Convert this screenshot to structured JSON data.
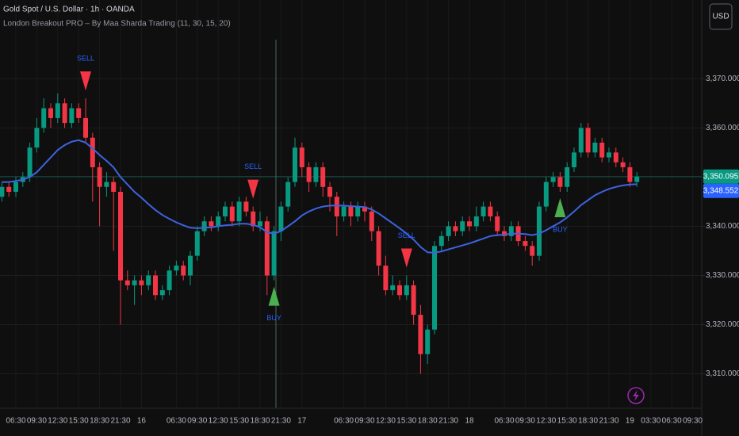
{
  "chart_data": {
    "type": "candlestick",
    "title": "Gold Spot / U.S. Dollar · 1h · OANDA",
    "subtitle": "London Breakout PRO – By Maa Sharda Trading (11, 30, 15, 20)",
    "currency": "USD",
    "grid": true,
    "up_color": "#089981",
    "down_color": "#f23645",
    "ylim": [
      3303,
      3386
    ],
    "yticks": [
      {
        "value": 3310,
        "label": "3,310.000"
      },
      {
        "value": 3320,
        "label": "3,320.000"
      },
      {
        "value": 3330,
        "label": "3,330.000"
      },
      {
        "value": 3340,
        "label": "3,340.000"
      },
      {
        "value": 3350,
        "label": "3,350.000"
      },
      {
        "value": 3360,
        "label": "3,360.000"
      },
      {
        "value": 3370,
        "label": "3,370.000"
      }
    ],
    "categories": [
      null,
      null,
      "06:30",
      null,
      null,
      "09:30",
      null,
      null,
      "12:30",
      null,
      null,
      "15:30",
      null,
      null,
      "18:30",
      null,
      null,
      "21:30",
      null,
      null,
      "16",
      null,
      null,
      null,
      null,
      "06:30",
      null,
      null,
      "09:30",
      null,
      null,
      "12:30",
      null,
      null,
      "15:30",
      null,
      null,
      "18:30",
      null,
      null,
      "21:30",
      null,
      null,
      "17",
      null,
      null,
      null,
      null,
      null,
      "06:30",
      null,
      null,
      "09:30",
      null,
      null,
      "12:30",
      null,
      null,
      "15:30",
      null,
      null,
      "18:30",
      null,
      null,
      "21:30",
      null,
      null,
      "18",
      null,
      null,
      null,
      null,
      "06:30",
      null,
      null,
      "09:30",
      null,
      null,
      "12:30",
      null,
      null,
      "15:30",
      null,
      null,
      "18:30",
      null,
      null,
      "21:30",
      null,
      null,
      "19",
      null,
      null,
      "03:30",
      null,
      null,
      "06:30",
      null,
      null,
      "09:30",
      null
    ],
    "open": [
      3346,
      3348,
      3347,
      3349,
      3350,
      3356,
      3360,
      3364,
      3362,
      3365,
      3361,
      3364,
      3362,
      3358,
      3352,
      3348,
      3349,
      3347,
      3329,
      3328,
      3329,
      3328,
      3330,
      3326,
      3327,
      3331,
      3332,
      3330,
      3334,
      3339,
      3341,
      3340,
      3342,
      3344,
      3341,
      3345,
      3343,
      3340,
      3341,
      3330,
      3339,
      3344,
      3349,
      3356,
      3352,
      3349,
      3352,
      3348,
      3346,
      3342,
      3344,
      3342,
      3344,
      3343,
      3339,
      3332,
      3327,
      3328,
      3326,
      3328,
      3322,
      3314,
      3319,
      3336,
      3338,
      3340,
      3339,
      3341,
      3340,
      3342,
      3344,
      3342,
      3339,
      3338,
      3340,
      3337,
      3336,
      3334,
      3344,
      3349,
      3350,
      3348,
      3352,
      3355,
      3360,
      3355,
      3357,
      3354,
      3355,
      3353,
      3352,
      3349,
      null,
      null,
      null,
      null,
      null,
      null,
      null,
      null,
      null
    ],
    "high": [
      3349,
      3349,
      3350,
      3351,
      3357,
      3362,
      3366,
      3365,
      3367,
      3366,
      3365,
      3365,
      3366,
      3359,
      3353,
      3351,
      3350,
      3348,
      3331,
      3330,
      3330,
      3331,
      3331,
      3328,
      3332,
      3333,
      3333,
      3335,
      3340,
      3342,
      3342,
      3343,
      3345,
      3345,
      3346,
      3346,
      3344,
      3343,
      3342,
      3340,
      3345,
      3350,
      3358,
      3357,
      3353,
      3353,
      3353,
      3349,
      3347,
      3345,
      3345,
      3345,
      3345,
      3344,
      3340,
      3334,
      3330,
      3329,
      3330,
      3329,
      3324,
      3320,
      3337,
      3339,
      3341,
      3341,
      3342,
      3342,
      3344,
      3345,
      3345,
      3343,
      3340,
      3341,
      3341,
      3338,
      3337,
      3345,
      3350,
      3351,
      3351,
      3353,
      3356,
      3361,
      3361,
      3358,
      3358,
      3356,
      3356,
      3354,
      3353,
      3351,
      null,
      null,
      null,
      null,
      null,
      null,
      null,
      null,
      null
    ],
    "low": [
      3345,
      3346,
      3346,
      3348,
      3349,
      3355,
      3359,
      3360,
      3361,
      3360,
      3360,
      3361,
      3357,
      3345,
      3340,
      3346,
      3335,
      3320,
      3327,
      3324,
      3326,
      3327,
      3325,
      3325,
      3326,
      3330,
      3329,
      3328,
      3333,
      3338,
      3339,
      3339,
      3341,
      3340,
      3340,
      3342,
      3339,
      3339,
      3326,
      3329,
      3337,
      3343,
      3348,
      3350,
      3347,
      3348,
      3346,
      3343,
      3338,
      3341,
      3340,
      3341,
      3341,
      3337,
      3330,
      3326,
      3326,
      3325,
      3325,
      3320,
      3310,
      3312,
      3318,
      3335,
      3337,
      3338,
      3338,
      3339,
      3339,
      3341,
      3341,
      3338,
      3337,
      3337,
      3336,
      3335,
      3332,
      3333,
      3343,
      3348,
      3347,
      3347,
      3351,
      3354,
      3354,
      3354,
      3353,
      3353,
      3352,
      3351,
      3348,
      3348,
      null,
      null,
      null,
      null,
      null,
      null,
      null,
      null,
      null
    ],
    "close": [
      3348,
      3347,
      3349,
      3350,
      3356,
      3360,
      3364,
      3362,
      3365,
      3361,
      3364,
      3362,
      3358,
      3352,
      3348,
      3349,
      3347,
      3329,
      3328,
      3329,
      3328,
      3330,
      3326,
      3327,
      3331,
      3332,
      3330,
      3334,
      3339,
      3341,
      3340,
      3342,
      3344,
      3341,
      3345,
      3343,
      3340,
      3341,
      3330,
      3339,
      3344,
      3349,
      3356,
      3352,
      3349,
      3352,
      3348,
      3346,
      3342,
      3344,
      3342,
      3344,
      3343,
      3339,
      3332,
      3327,
      3328,
      3326,
      3328,
      3322,
      3314,
      3319,
      3336,
      3338,
      3340,
      3339,
      3341,
      3340,
      3342,
      3344,
      3342,
      3339,
      3338,
      3340,
      3337,
      3336,
      3334,
      3344,
      3349,
      3350,
      3348,
      3352,
      3355,
      3360,
      3355,
      3357,
      3354,
      3355,
      3353,
      3352,
      3349,
      3350.095,
      null,
      null,
      null,
      null,
      null,
      null,
      null,
      null,
      null
    ],
    "line": {
      "color": "#3d63e0",
      "values": [
        3349,
        3349,
        3349.2,
        3349.5,
        3350,
        3351,
        3352.5,
        3354,
        3355.5,
        3356.5,
        3357.2,
        3357.5,
        3357,
        3355.8,
        3354.5,
        3353.3,
        3352,
        3350,
        3348.5,
        3347,
        3345.8,
        3344.5,
        3343.3,
        3342.3,
        3341.5,
        3340.8,
        3340.2,
        3339.7,
        3339.6,
        3339.7,
        3339.8,
        3340,
        3340.2,
        3340.3,
        3340.5,
        3340.5,
        3340.3,
        3339.8,
        3338.8,
        3338.5,
        3339,
        3340,
        3341,
        3342.2,
        3343,
        3343.6,
        3344,
        3344.2,
        3344.2,
        3344.2,
        3344.1,
        3344,
        3343.9,
        3343.4,
        3342.6,
        3341.6,
        3340.6,
        3339.6,
        3338.5,
        3337.3,
        3335.8,
        3334.7,
        3334.6,
        3334.9,
        3335.3,
        3335.7,
        3336.1,
        3336.5,
        3337,
        3337.5,
        3338,
        3338.2,
        3338.3,
        3338.5,
        3338.5,
        3338.4,
        3338.2,
        3338.5,
        3339.2,
        3340,
        3340.8,
        3341.8,
        3343,
        3344.3,
        3345.3,
        3346.3,
        3347,
        3347.6,
        3348,
        3348.3,
        3348.5,
        3348.552,
        null,
        null,
        null,
        null,
        null,
        null,
        null,
        null,
        null
      ]
    },
    "signals": [
      null,
      null,
      null,
      null,
      null,
      null,
      null,
      null,
      null,
      null,
      null,
      null,
      "SELL",
      null,
      null,
      null,
      null,
      null,
      null,
      null,
      null,
      null,
      null,
      null,
      null,
      null,
      null,
      null,
      null,
      null,
      null,
      null,
      null,
      null,
      null,
      null,
      "SELL",
      null,
      null,
      "BUY",
      null,
      null,
      null,
      null,
      null,
      null,
      null,
      null,
      null,
      null,
      null,
      null,
      null,
      null,
      null,
      null,
      null,
      null,
      "SELL",
      null,
      null,
      null,
      null,
      null,
      null,
      null,
      null,
      null,
      null,
      null,
      null,
      null,
      null,
      null,
      null,
      null,
      null,
      null,
      null,
      null,
      "BUY",
      null,
      null,
      null,
      null,
      null,
      null,
      null,
      null,
      null,
      null,
      null,
      null,
      null,
      null,
      null,
      null,
      null,
      null,
      null,
      null
    ],
    "signal_colors": {
      "SELL": "#f23645",
      "BUY": "#4caf50"
    },
    "signal_side": {
      "SELL": "above",
      "BUY": "below"
    },
    "signal_text_color": "#2962ff",
    "price_labels": [
      {
        "value": 3350.095,
        "label": "3,350.095",
        "color": "#089981"
      },
      {
        "value": 3348.552,
        "label": "3,348.552",
        "color": "#2962ff"
      }
    ]
  }
}
